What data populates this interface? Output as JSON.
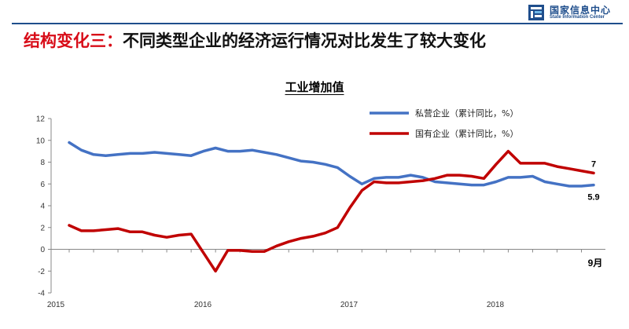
{
  "logo": {
    "name_cn": "国家信息中心",
    "name_en": "State Information Center"
  },
  "slide_title": {
    "prefix": "结构变化三：",
    "text": "不同类型企业的经济运行情况对比发生了较大变化"
  },
  "colors": {
    "private": "#4472c4",
    "state": "#c00000",
    "title_red": "#d80c18",
    "brand_blue": "#1f4e8c"
  },
  "chart_data": {
    "type": "line",
    "title": "工业增加值",
    "ylim": [
      -4,
      12
    ],
    "yticks": [
      -4,
      -2,
      0,
      2,
      4,
      6,
      8,
      10,
      12
    ],
    "x_tick_labels": [
      "2015",
      "2016",
      "2017",
      "2018"
    ],
    "x_end_label": "9月",
    "legend_position": "top-right",
    "series": [
      {
        "name": "私营企业（累计同比，%）",
        "color": "#4472c4",
        "values": [
          9.8,
          9.1,
          8.7,
          8.6,
          8.7,
          8.8,
          8.8,
          8.9,
          8.8,
          8.7,
          8.6,
          9.0,
          9.3,
          9.0,
          9.0,
          9.1,
          8.9,
          8.7,
          8.4,
          8.1,
          8.0,
          7.8,
          7.5,
          6.7,
          6.0,
          6.5,
          6.6,
          6.6,
          6.8,
          6.6,
          6.2,
          6.1,
          6.0,
          5.9,
          5.9,
          6.2,
          6.6,
          6.6,
          6.7,
          6.2,
          6.0,
          5.8,
          5.8,
          5.9
        ],
        "end_label": "5.9"
      },
      {
        "name": "国有企业（累计同比，%）",
        "color": "#c00000",
        "values": [
          2.2,
          1.7,
          1.7,
          1.8,
          1.9,
          1.6,
          1.6,
          1.3,
          1.1,
          1.3,
          1.4,
          -0.3,
          -2.0,
          -0.1,
          -0.1,
          -0.2,
          -0.2,
          0.3,
          0.7,
          1.0,
          1.2,
          1.5,
          2.0,
          3.8,
          5.4,
          6.2,
          6.1,
          6.1,
          6.2,
          6.3,
          6.5,
          6.8,
          6.8,
          6.7,
          6.5,
          7.8,
          9.0,
          7.9,
          7.9,
          7.9,
          7.6,
          7.4,
          7.2,
          7.0
        ],
        "end_label": "7"
      }
    ]
  }
}
